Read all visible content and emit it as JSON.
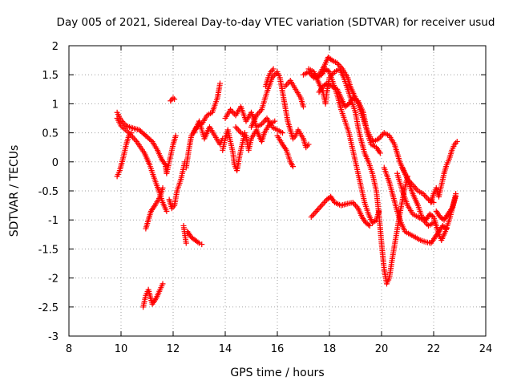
{
  "chart_data": {
    "type": "scatter",
    "title": "Day 005 of 2021, Sidereal Day-to-day VTEC variation (SDTVAR) for receiver usud",
    "xlabel": "GPS time / hours",
    "ylabel": "SDTVAR / TECUs",
    "xlim": [
      8,
      24
    ],
    "ylim": [
      -3,
      2
    ],
    "xticks": [
      "8",
      "10",
      "12",
      "14",
      "16",
      "18",
      "20",
      "22",
      "24"
    ],
    "yticks": [
      "2",
      "1.5",
      "1",
      "0.5",
      "0",
      "-0.5",
      "-1",
      "-1.5",
      "-2",
      "-2.5",
      "-3"
    ],
    "grid": true,
    "marker": "+",
    "color": "#ff0000",
    "series": [
      {
        "values": [
          [
            9.85,
            0.85
          ],
          [
            10.0,
            0.72
          ],
          [
            10.2,
            0.62
          ],
          [
            10.45,
            0.58
          ],
          [
            10.7,
            0.55
          ],
          [
            10.95,
            0.45
          ],
          [
            11.2,
            0.35
          ],
          [
            11.4,
            0.2
          ],
          [
            11.55,
            0.05
          ],
          [
            11.7,
            -0.05
          ],
          [
            11.75,
            -0.2
          ],
          [
            11.9,
            0.1
          ],
          [
            12.0,
            0.3
          ],
          [
            12.1,
            0.45
          ]
        ]
      },
      {
        "values": [
          [
            9.85,
            0.75
          ],
          [
            10.0,
            0.62
          ],
          [
            10.3,
            0.5
          ],
          [
            10.6,
            0.35
          ],
          [
            10.9,
            0.15
          ],
          [
            11.1,
            -0.05
          ],
          [
            11.25,
            -0.25
          ],
          [
            11.45,
            -0.5
          ],
          [
            11.6,
            -0.7
          ],
          [
            11.75,
            -0.85
          ]
        ]
      },
      {
        "values": [
          [
            9.85,
            -0.25
          ],
          [
            9.95,
            -0.15
          ],
          [
            10.1,
            0.1
          ],
          [
            10.2,
            0.3
          ],
          [
            10.3,
            0.45
          ],
          [
            10.4,
            0.5
          ]
        ]
      },
      {
        "values": [
          [
            10.95,
            -1.15
          ],
          [
            11.05,
            -1.0
          ],
          [
            11.15,
            -0.85
          ],
          [
            11.3,
            -0.75
          ],
          [
            11.5,
            -0.6
          ],
          [
            11.6,
            -0.45
          ]
        ]
      },
      {
        "values": [
          [
            10.85,
            -2.5
          ],
          [
            10.95,
            -2.3
          ],
          [
            11.05,
            -2.2
          ],
          [
            11.2,
            -2.45
          ],
          [
            11.35,
            -2.35
          ],
          [
            11.5,
            -2.2
          ],
          [
            11.6,
            -2.1
          ]
        ]
      },
      {
        "values": [
          [
            11.9,
            1.05
          ],
          [
            12.0,
            1.1
          ],
          [
            12.05,
            1.08
          ]
        ]
      },
      {
        "values": [
          [
            11.85,
            -0.65
          ],
          [
            11.95,
            -0.8
          ],
          [
            12.05,
            -0.75
          ],
          [
            12.15,
            -0.5
          ],
          [
            12.3,
            -0.3
          ],
          [
            12.45,
            0.0
          ]
        ]
      },
      {
        "values": [
          [
            12.5,
            -0.1
          ],
          [
            12.6,
            0.2
          ],
          [
            12.7,
            0.45
          ],
          [
            12.9,
            0.6
          ],
          [
            13.1,
            0.65
          ],
          [
            13.3,
            0.8
          ],
          [
            13.5,
            0.85
          ],
          [
            13.7,
            1.1
          ],
          [
            13.8,
            1.35
          ]
        ]
      },
      {
        "values": [
          [
            12.55,
            -1.2
          ],
          [
            12.7,
            -1.3
          ],
          [
            12.85,
            -1.35
          ],
          [
            13.0,
            -1.4
          ],
          [
            13.1,
            -1.42
          ]
        ]
      },
      {
        "values": [
          [
            12.4,
            -1.1
          ],
          [
            12.5,
            -1.4
          ]
        ]
      },
      {
        "values": [
          [
            12.8,
            0.5
          ],
          [
            13.0,
            0.7
          ],
          [
            13.2,
            0.4
          ],
          [
            13.4,
            0.6
          ],
          [
            13.6,
            0.45
          ],
          [
            13.8,
            0.3
          ],
          [
            13.9,
            0.4
          ]
        ]
      },
      {
        "values": [
          [
            13.9,
            0.2
          ],
          [
            14.0,
            0.4
          ],
          [
            14.1,
            0.55
          ],
          [
            14.2,
            0.35
          ],
          [
            14.3,
            0.15
          ],
          [
            14.35,
            -0.05
          ],
          [
            14.45,
            -0.15
          ],
          [
            14.55,
            0.1
          ],
          [
            14.65,
            0.3
          ],
          [
            14.75,
            0.5
          ]
        ]
      },
      {
        "values": [
          [
            14.0,
            0.75
          ],
          [
            14.2,
            0.9
          ],
          [
            14.4,
            0.8
          ],
          [
            14.6,
            0.95
          ],
          [
            14.8,
            0.7
          ],
          [
            15.0,
            0.85
          ],
          [
            15.2,
            0.6
          ],
          [
            15.4,
            0.65
          ],
          [
            15.6,
            0.75
          ],
          [
            15.8,
            0.6
          ],
          [
            16.0,
            0.55
          ],
          [
            16.2,
            0.5
          ]
        ]
      },
      {
        "values": [
          [
            14.4,
            0.6
          ],
          [
            14.6,
            0.5
          ],
          [
            14.8,
            0.45
          ],
          [
            14.9,
            0.2
          ],
          [
            15.0,
            0.4
          ],
          [
            15.2,
            0.55
          ],
          [
            15.4,
            0.35
          ],
          [
            15.5,
            0.5
          ],
          [
            15.7,
            0.65
          ],
          [
            15.9,
            0.7
          ]
        ]
      },
      {
        "values": [
          [
            15.0,
            0.6
          ],
          [
            15.2,
            0.8
          ],
          [
            15.4,
            0.9
          ],
          [
            15.6,
            1.2
          ],
          [
            15.8,
            1.45
          ],
          [
            16.0,
            1.55
          ],
          [
            16.1,
            1.45
          ],
          [
            16.2,
            1.2
          ],
          [
            16.3,
            0.95
          ],
          [
            16.4,
            0.7
          ],
          [
            16.5,
            0.55
          ],
          [
            16.6,
            0.4
          ],
          [
            16.7,
            0.45
          ],
          [
            16.8,
            0.55
          ],
          [
            17.0,
            0.4
          ],
          [
            17.1,
            0.25
          ],
          [
            17.2,
            0.3
          ]
        ]
      },
      {
        "values": [
          [
            15.55,
            1.3
          ],
          [
            15.65,
            1.45
          ],
          [
            15.75,
            1.55
          ],
          [
            15.85,
            1.6
          ]
        ]
      },
      {
        "values": [
          [
            16.0,
            0.45
          ],
          [
            16.2,
            0.3
          ],
          [
            16.35,
            0.2
          ],
          [
            16.5,
            0.0
          ],
          [
            16.6,
            -0.08
          ]
        ]
      },
      {
        "values": [
          [
            16.3,
            1.3
          ],
          [
            16.5,
            1.4
          ],
          [
            16.7,
            1.25
          ],
          [
            16.9,
            1.1
          ],
          [
            17.0,
            0.95
          ]
        ]
      },
      {
        "values": [
          [
            17.0,
            1.5
          ],
          [
            17.2,
            1.55
          ],
          [
            17.4,
            1.45
          ],
          [
            17.6,
            1.5
          ],
          [
            17.8,
            1.65
          ],
          [
            17.95,
            1.8
          ],
          [
            18.1,
            1.75
          ],
          [
            18.3,
            1.7
          ],
          [
            18.5,
            1.6
          ],
          [
            18.7,
            1.45
          ],
          [
            18.8,
            1.3
          ],
          [
            18.95,
            1.15
          ],
          [
            19.1,
            1.0
          ],
          [
            19.25,
            0.8
          ],
          [
            19.4,
            0.6
          ],
          [
            19.5,
            0.5
          ],
          [
            19.6,
            0.4
          ],
          [
            19.7,
            0.35
          ],
          [
            19.9,
            0.4
          ],
          [
            20.1,
            0.5
          ],
          [
            20.3,
            0.45
          ],
          [
            20.5,
            0.3
          ],
          [
            20.6,
            0.15
          ],
          [
            20.7,
            0.0
          ],
          [
            20.85,
            -0.15
          ],
          [
            21.0,
            -0.3
          ],
          [
            21.2,
            -0.4
          ],
          [
            21.4,
            -0.5
          ],
          [
            21.6,
            -0.55
          ],
          [
            21.8,
            -0.65
          ],
          [
            22.0,
            -0.7
          ]
        ]
      },
      {
        "values": [
          [
            17.2,
            1.6
          ],
          [
            17.4,
            1.55
          ],
          [
            17.6,
            1.35
          ],
          [
            17.75,
            1.2
          ],
          [
            17.85,
            1.0
          ],
          [
            17.9,
            1.2
          ],
          [
            18.0,
            1.45
          ],
          [
            18.2,
            1.55
          ],
          [
            18.4,
            1.6
          ],
          [
            18.55,
            1.45
          ],
          [
            18.7,
            1.25
          ],
          [
            18.85,
            1.05
          ],
          [
            19.0,
            0.85
          ],
          [
            19.1,
            0.6
          ],
          [
            19.2,
            0.4
          ],
          [
            19.35,
            0.15
          ],
          [
            19.5,
            0.0
          ],
          [
            19.65,
            -0.2
          ],
          [
            19.8,
            -0.5
          ],
          [
            19.9,
            -0.9
          ],
          [
            20.0,
            -1.4
          ],
          [
            20.1,
            -1.85
          ],
          [
            20.2,
            -2.1
          ],
          [
            20.3,
            -2.0
          ],
          [
            20.4,
            -1.7
          ],
          [
            20.55,
            -1.3
          ],
          [
            20.7,
            -0.9
          ],
          [
            20.85,
            -0.55
          ],
          [
            21.0,
            -0.25
          ]
        ]
      },
      {
        "values": [
          [
            17.3,
            1.5
          ],
          [
            17.5,
            1.45
          ],
          [
            17.7,
            1.5
          ],
          [
            17.85,
            1.6
          ],
          [
            18.0,
            1.55
          ],
          [
            18.15,
            1.35
          ],
          [
            18.3,
            1.15
          ],
          [
            18.45,
            0.9
          ],
          [
            18.6,
            0.7
          ],
          [
            18.75,
            0.5
          ],
          [
            18.9,
            0.2
          ],
          [
            19.05,
            -0.1
          ],
          [
            19.2,
            -0.4
          ],
          [
            19.35,
            -0.7
          ],
          [
            19.5,
            -0.9
          ],
          [
            19.65,
            -1.05
          ],
          [
            19.8,
            -1.0
          ],
          [
            19.9,
            -0.85
          ]
        ]
      },
      {
        "values": [
          [
            17.6,
            1.2
          ],
          [
            17.75,
            1.3
          ],
          [
            17.9,
            1.35
          ],
          [
            18.1,
            1.3
          ],
          [
            18.3,
            1.25
          ],
          [
            18.45,
            1.1
          ],
          [
            18.6,
            0.95
          ],
          [
            18.75,
            1.0
          ],
          [
            18.9,
            1.1
          ],
          [
            19.1,
            1.05
          ],
          [
            19.3,
            0.85
          ],
          [
            19.45,
            0.5
          ],
          [
            19.6,
            0.3
          ],
          [
            19.8,
            0.25
          ],
          [
            19.95,
            0.15
          ]
        ]
      },
      {
        "values": [
          [
            17.3,
            -0.95
          ],
          [
            17.5,
            -0.85
          ],
          [
            17.7,
            -0.75
          ],
          [
            17.9,
            -0.65
          ],
          [
            18.05,
            -0.6
          ],
          [
            18.2,
            -0.7
          ],
          [
            18.45,
            -0.75
          ],
          [
            18.7,
            -0.72
          ],
          [
            18.9,
            -0.7
          ],
          [
            19.1,
            -0.8
          ],
          [
            19.25,
            -0.95
          ],
          [
            19.4,
            -1.05
          ],
          [
            19.55,
            -1.1
          ]
        ]
      },
      {
        "values": [
          [
            20.1,
            -0.1
          ],
          [
            20.3,
            -0.35
          ],
          [
            20.45,
            -0.6
          ],
          [
            20.6,
            -0.85
          ],
          [
            20.75,
            -1.05
          ],
          [
            20.9,
            -1.2
          ],
          [
            21.1,
            -1.25
          ],
          [
            21.3,
            -1.3
          ],
          [
            21.5,
            -1.35
          ],
          [
            21.7,
            -1.38
          ],
          [
            21.9,
            -1.4
          ],
          [
            22.05,
            -1.3
          ],
          [
            22.2,
            -1.2
          ],
          [
            22.35,
            -1.1
          ],
          [
            22.5,
            -1.15
          ]
        ]
      },
      {
        "values": [
          [
            20.8,
            -0.1
          ],
          [
            21.0,
            -0.3
          ],
          [
            21.2,
            -0.55
          ],
          [
            21.4,
            -0.75
          ],
          [
            21.55,
            -0.95
          ],
          [
            21.7,
            -1.0
          ],
          [
            21.85,
            -0.9
          ],
          [
            22.0,
            -0.95
          ],
          [
            22.1,
            -1.1
          ],
          [
            22.2,
            -1.25
          ],
          [
            22.3,
            -1.35
          ],
          [
            22.45,
            -1.2
          ],
          [
            22.6,
            -1.0
          ],
          [
            22.75,
            -0.75
          ],
          [
            22.85,
            -0.55
          ]
        ]
      },
      {
        "values": [
          [
            20.6,
            -0.2
          ],
          [
            20.8,
            -0.5
          ],
          [
            21.0,
            -0.75
          ],
          [
            21.2,
            -0.9
          ],
          [
            21.4,
            -0.95
          ],
          [
            21.6,
            -1.0
          ],
          [
            21.8,
            -1.1
          ],
          [
            22.0,
            -1.05
          ]
        ]
      },
      {
        "values": [
          [
            21.9,
            -0.7
          ],
          [
            22.0,
            -0.55
          ],
          [
            22.1,
            -0.45
          ],
          [
            22.2,
            -0.6
          ],
          [
            22.3,
            -0.4
          ],
          [
            22.4,
            -0.2
          ],
          [
            22.5,
            -0.05
          ],
          [
            22.6,
            0.05
          ],
          [
            22.7,
            0.2
          ],
          [
            22.8,
            0.3
          ],
          [
            22.9,
            0.35
          ]
        ]
      },
      {
        "values": [
          [
            22.1,
            -0.85
          ],
          [
            22.25,
            -0.95
          ],
          [
            22.4,
            -1.0
          ],
          [
            22.55,
            -0.9
          ],
          [
            22.7,
            -0.8
          ],
          [
            22.85,
            -0.6
          ]
        ]
      }
    ]
  }
}
